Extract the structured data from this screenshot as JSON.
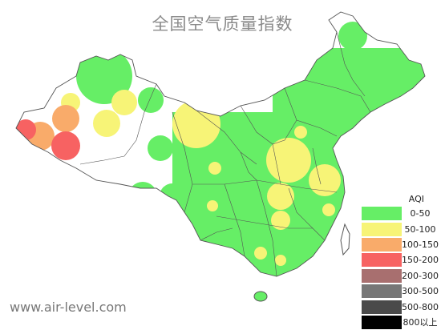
{
  "title": "全国空气质量指数",
  "watermark": "www.air-level.com",
  "legend": {
    "title": "AQI",
    "items": [
      {
        "label": "0-50",
        "color": "#66ee66"
      },
      {
        "label": "50-100",
        "color": "#f7f477"
      },
      {
        "label": "100-150",
        "color": "#f9ab6a"
      },
      {
        "label": "150-200",
        "color": "#f76262"
      },
      {
        "label": "200-300",
        "color": "#a86f6f"
      },
      {
        "label": "300-500",
        "color": "#777777"
      },
      {
        "label": "500-800",
        "color": "#4a4a4a"
      },
      {
        "label": "800以上",
        "color": "#000000"
      }
    ]
  },
  "colors": {
    "good": "#66ee66",
    "moderate": "#f7f477",
    "sensitive": "#f9ab6a",
    "unhealthy": "#f76262",
    "boundary": "#555555",
    "land": "#ffffff"
  }
}
